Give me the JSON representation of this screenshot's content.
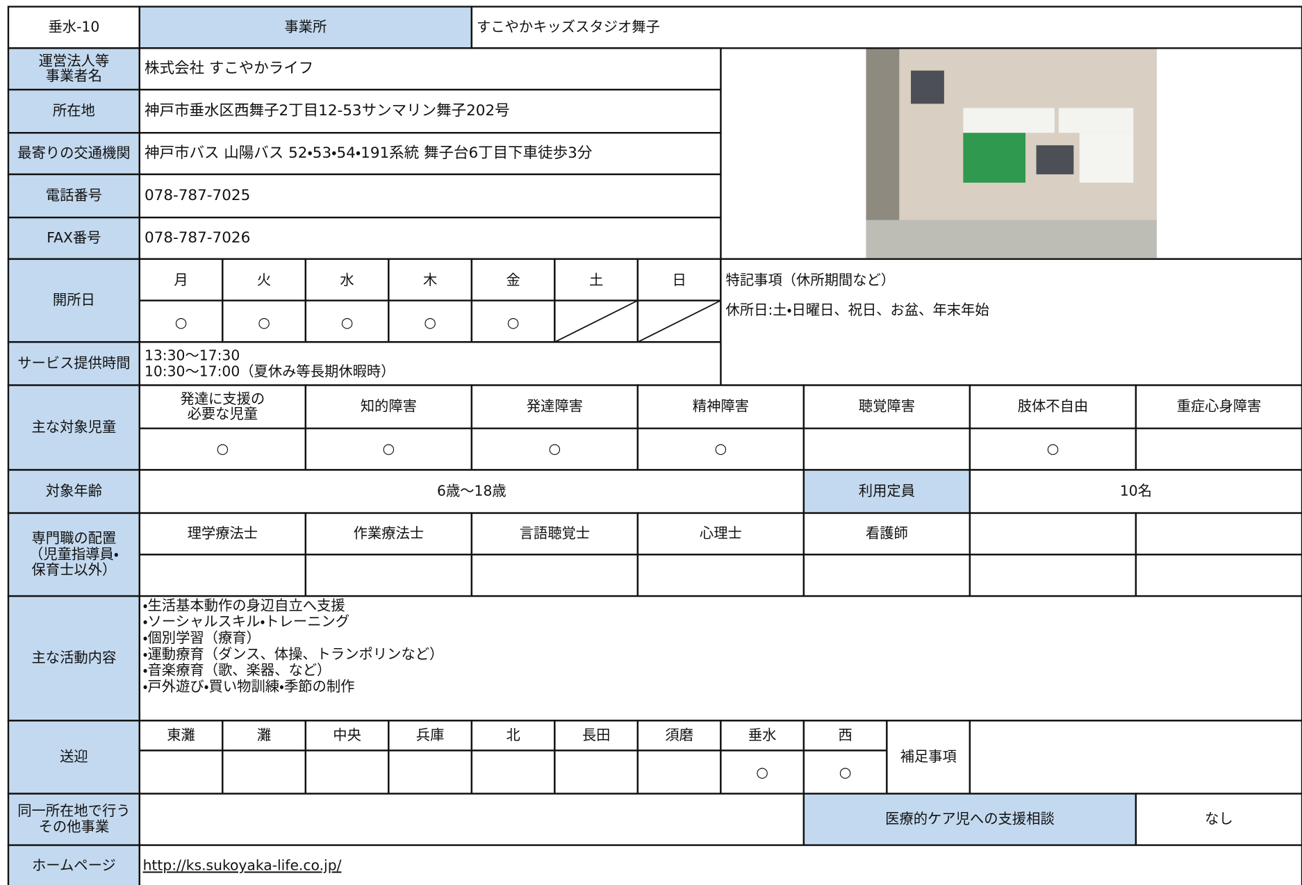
{
  "header": {
    "id": "垂水-10",
    "label": "事業所",
    "name": "すこやかキッズスタジオ舞子"
  },
  "info": [
    {
      "label": [
        "運営法人等",
        "事業者名"
      ],
      "value": "株式会社 すこやかライフ"
    },
    {
      "label": [
        "所在地"
      ],
      "value": "神戸市垂水区西舞子2丁目12-53サンマリン舞子202号"
    },
    {
      "label": [
        "最寄りの交通機関"
      ],
      "value": "神戸市バス 山陽バス 52・53・54・191系統 舞子台6丁目下車徒歩3分"
    },
    {
      "label": [
        "電話番号"
      ],
      "value": "078-787-7025"
    },
    {
      "label": [
        "FAX番号"
      ],
      "value": "078-787-7026"
    }
  ],
  "opening": {
    "label": "開所日",
    "days": [
      "月",
      "火",
      "水",
      "木",
      "金",
      "土",
      "日"
    ],
    "marks": [
      "○",
      "○",
      "○",
      "○",
      "○",
      null,
      null
    ],
    "note_label": "特記事項（休所期間など）",
    "note": "休所日:土・日曜日、祝日、お盆、年末年始"
  },
  "hours": {
    "label": "サービス提供時間",
    "lines": [
      "13:30〜17:30",
      "10:30〜17:00（夏休み等長期休暇時）"
    ]
  },
  "target_children": {
    "label": "主な対象児童",
    "categories": [
      [
        "発達に支援の",
        "必要な児童"
      ],
      [
        "知的障害"
      ],
      [
        "発達障害"
      ],
      [
        "精神障害"
      ],
      [
        "聴覚障害"
      ],
      [
        "肢体不自由"
      ],
      [
        "重症心身障害"
      ]
    ],
    "marks": [
      "○",
      "○",
      "○",
      "○",
      null,
      "○",
      null
    ]
  },
  "age": {
    "label": "対象年齢",
    "value": "6歳〜18歳",
    "capacity_label": "利用定員",
    "capacity": "10名"
  },
  "staff": {
    "label": [
      "専門職の配置",
      "（児童指導員・",
      "保育士以外）"
    ],
    "roles": [
      "理学療法士",
      "作業療法士",
      "言語聴覚士",
      "心理士",
      "看護師"
    ]
  },
  "activities": {
    "label": "主な活動内容",
    "items": [
      "・生活基本動作の身辺自立へ支援",
      "・ソーシャルスキル・トレーニング",
      "・個別学習（療育）",
      "・運動療育（ダンス、体操、トランポリンなど）",
      "・音楽療育（歌、楽器、など）",
      "・戸外遊び・買い物訓練・季節の制作"
    ]
  },
  "transport": {
    "label": "送迎",
    "areas": [
      "東灘",
      "灘",
      "中央",
      "兵庫",
      "北",
      "長田",
      "須磨",
      "垂水",
      "西"
    ],
    "marks": [
      null,
      null,
      null,
      null,
      null,
      null,
      null,
      "○",
      "○"
    ],
    "note_label": "補足事項"
  },
  "other": {
    "label": [
      "同一所在地で行う",
      "その他事業"
    ],
    "medical_label": "医療的ケア児への支援相談",
    "medical": "なし"
  },
  "homepage": {
    "label": "ホームページ",
    "url": "http://ks.sukoyaka-life.co.jp/"
  }
}
